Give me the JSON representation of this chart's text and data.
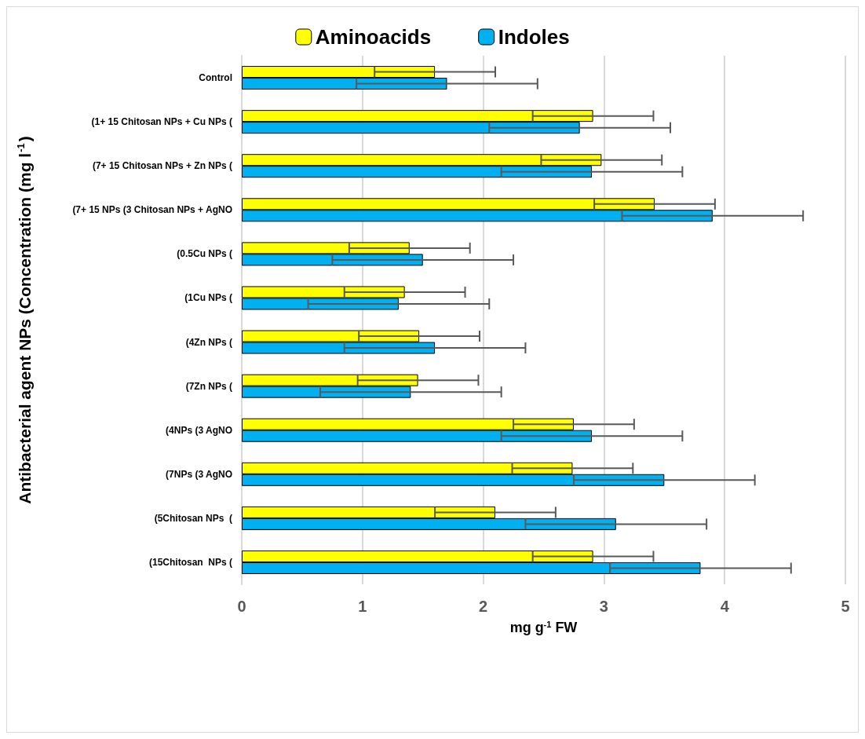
{
  "chart_data": {
    "type": "bar",
    "orientation": "horizontal",
    "xlabel": "mg g$^{-1}$ FW",
    "ylabel": "Antibacterial agent NPs (Concentration (mg l$^{-1}$)",
    "categories": [
      "Control",
      "(1+ 15 Chitosan NPs + Cu NPs (",
      "(7+ 15 Chitosan NPs + Zn NPs (",
      "(7+ 15 NPs (3 Chitosan NPs + AgNO",
      "(0.5Cu NPs (",
      "(1Cu NPs (",
      "(4Zn NPs (",
      "(7Zn NPs (",
      "(4NPs (3 AgNO",
      "(7NPs (3 AgNO",
      "(5Chitosan NPs  (",
      "(15Chitosan  NPs ("
    ],
    "series": [
      {
        "name": "Aminoacids",
        "color": "#ffff00",
        "values": [
          1.6,
          2.91,
          2.98,
          3.42,
          1.39,
          1.35,
          1.47,
          1.46,
          2.75,
          2.74,
          2.1,
          2.91
        ],
        "errors": [
          0.5,
          0.5,
          0.5,
          0.5,
          0.5,
          0.5,
          0.5,
          0.5,
          0.5,
          0.5,
          0.5,
          0.5
        ]
      },
      {
        "name": "Indoles",
        "color": "#00b0f0",
        "values": [
          1.7,
          2.8,
          2.9,
          3.9,
          1.5,
          1.3,
          1.6,
          1.4,
          2.9,
          3.5,
          3.1,
          3.8
        ],
        "errors": [
          0.75,
          0.75,
          0.75,
          0.75,
          0.75,
          0.75,
          0.75,
          0.75,
          0.75,
          0.75,
          0.75,
          0.75
        ]
      }
    ],
    "xlim": [
      0,
      5
    ],
    "xticks": [
      0,
      1,
      2,
      3,
      4,
      5
    ],
    "grid": "x",
    "legend": "top"
  }
}
